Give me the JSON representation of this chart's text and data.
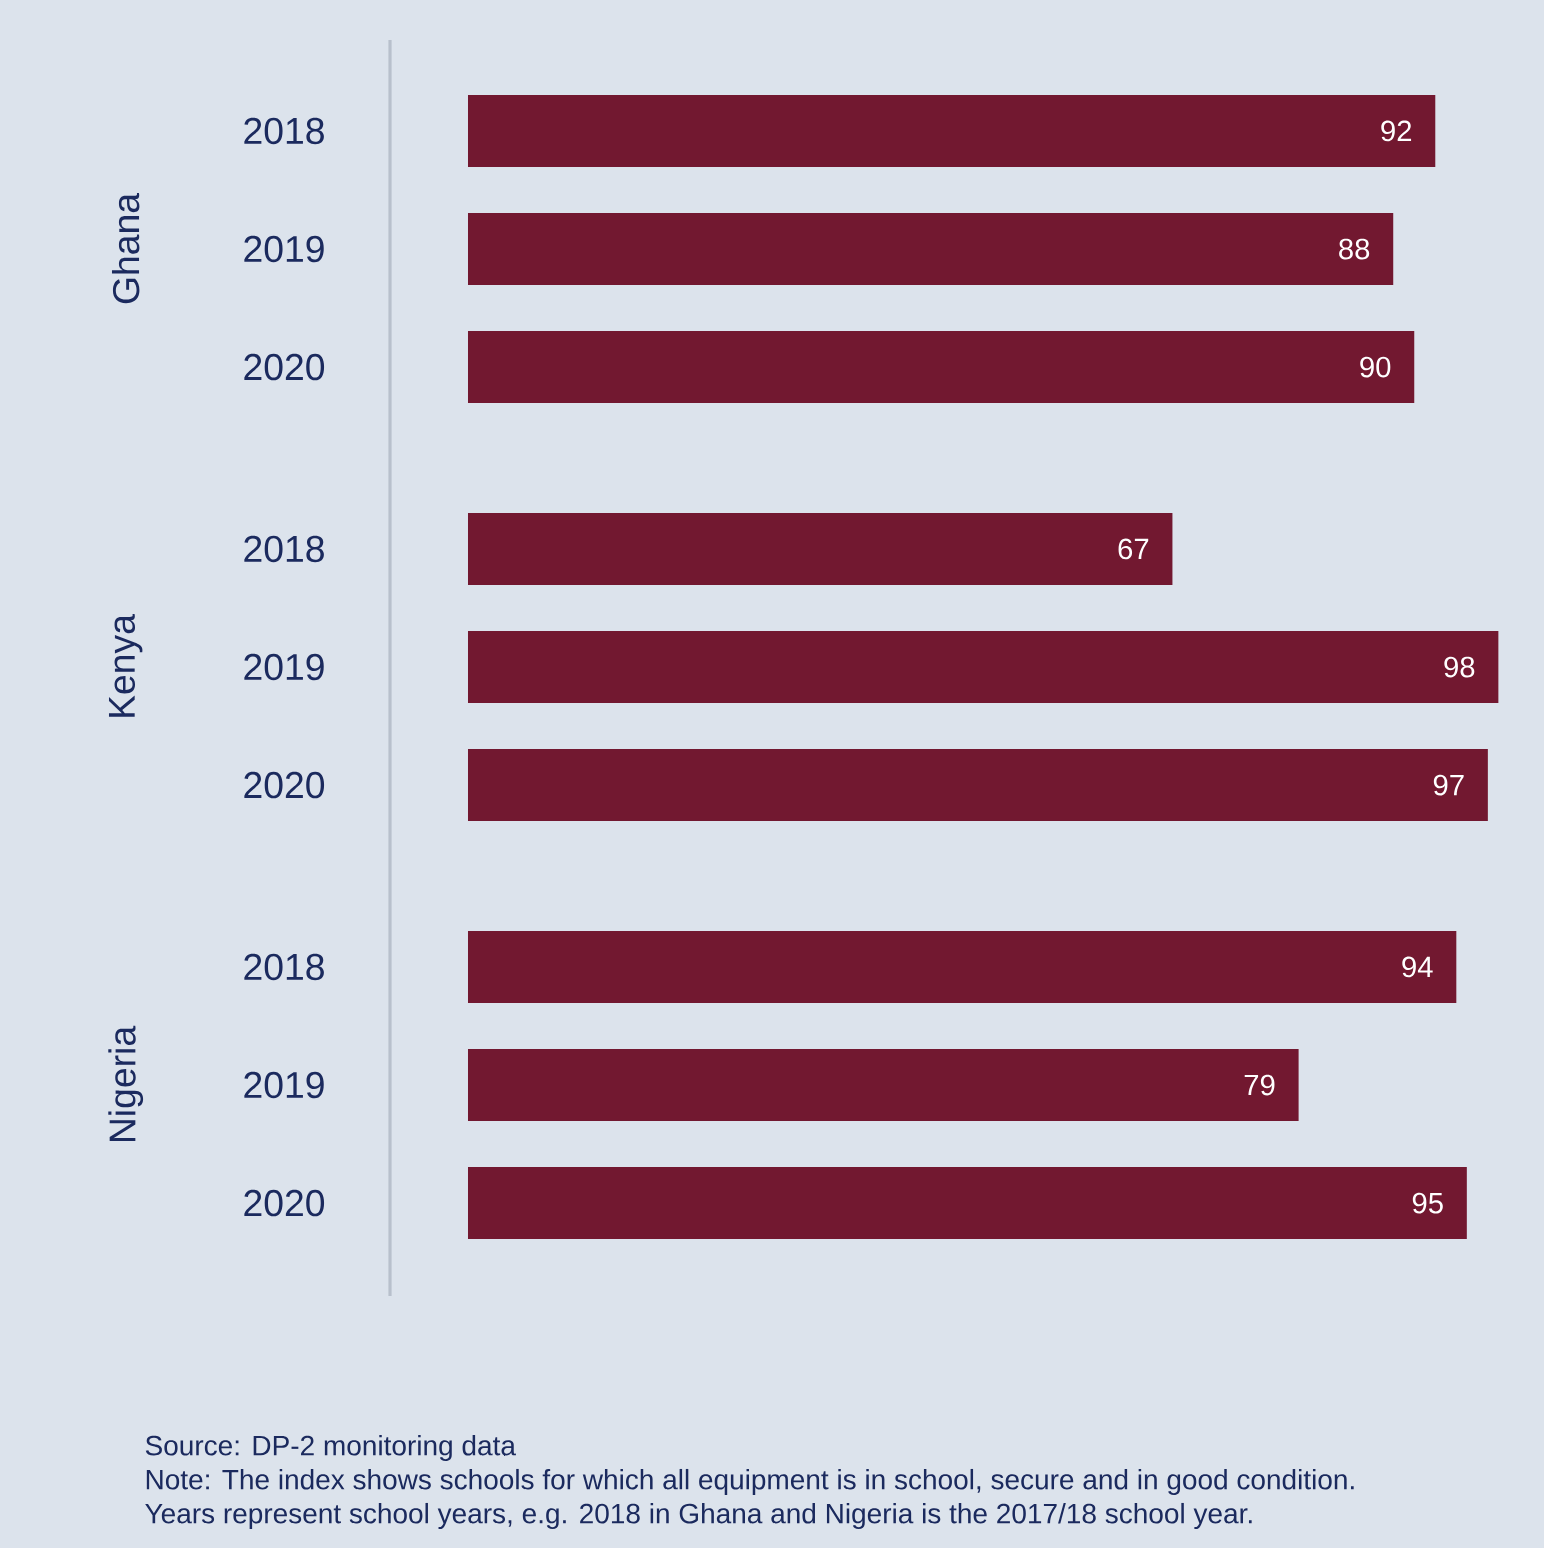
{
  "chart_data": [
    {
      "type": "bar",
      "orientation": "horizontal",
      "ylabel": "Ghana",
      "categories": [
        "2018",
        "2019",
        "2020"
      ],
      "values": [
        92,
        88,
        90
      ],
      "color": "#721830",
      "data_labels": true,
      "tick_labels": "y"
    },
    {
      "type": "bar",
      "orientation": "horizontal",
      "ylabel": "Kenya",
      "categories": [
        "2018",
        "2019",
        "2020"
      ],
      "values": [
        67,
        98,
        97
      ],
      "color": "#721830",
      "data_labels": true,
      "tick_labels": "y"
    },
    {
      "type": "bar",
      "orientation": "horizontal",
      "ylabel": "Nigeria",
      "categories": [
        "2018",
        "2019",
        "2020"
      ],
      "values": [
        94,
        79,
        95
      ],
      "color": "#721830",
      "data_labels": true,
      "tick_labels": "y",
      "annotations": [
        "Source: DP-2 monitoring data",
        "Note: The index shows schools for which all equipment is in school, secure and in good condition.",
        "Years represent school years, e.g. 2018 in Ghana and Nigeria is the 2017/18 school year."
      ]
    }
  ]
}
